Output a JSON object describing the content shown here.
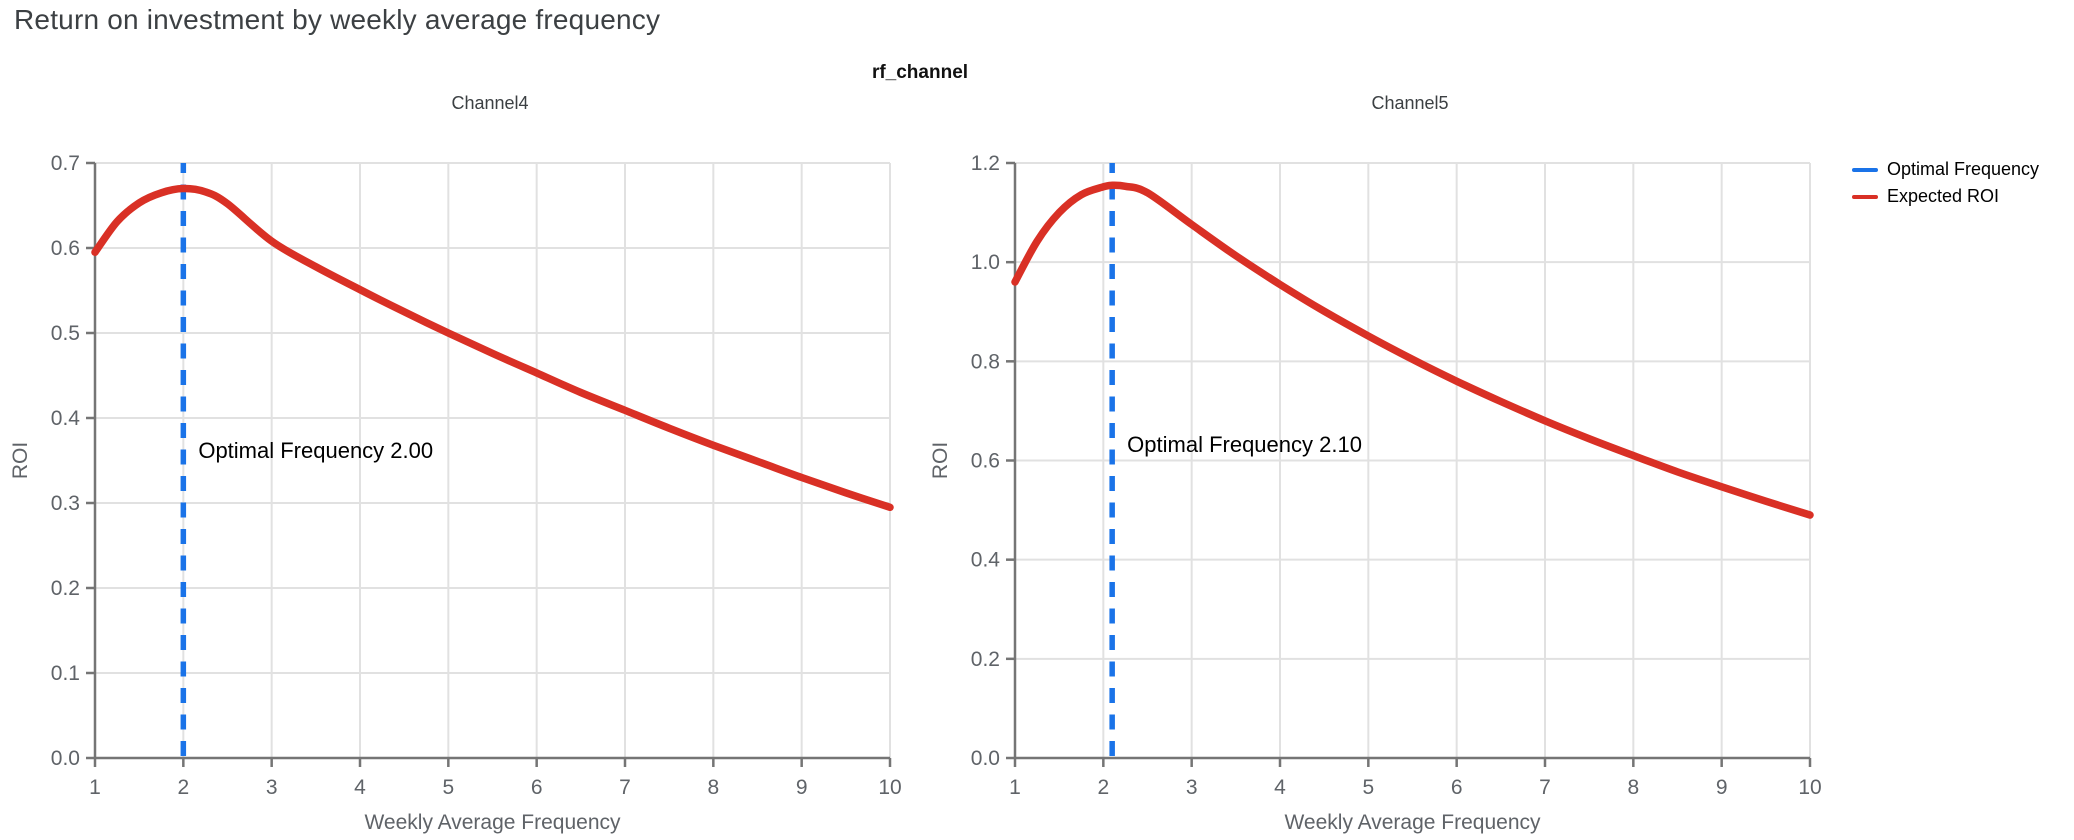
{
  "page": {
    "title": "Return on investment by weekly average frequency"
  },
  "figure": {
    "supertitle": "rf_channel"
  },
  "legend": {
    "items": [
      {
        "label": "Optimal Frequency",
        "color": "#1a73e8"
      },
      {
        "label": "Expected ROI",
        "color": "#d93025"
      }
    ]
  },
  "colors": {
    "curve_red": "#d93025",
    "vline_blue": "#1a73e8",
    "grid": "#e1e1e1",
    "axis": "#757575",
    "tick_text": "#5f6368",
    "title_text": "#3c4043",
    "annotation_text": "#000000"
  },
  "chart_data": [
    {
      "type": "line",
      "title": "Channel4",
      "xlabel": "Weekly Average Frequency",
      "ylabel": "ROI",
      "xlim": [
        1,
        10
      ],
      "ylim": [
        0,
        0.7
      ],
      "grid": true,
      "xticks": [
        1,
        2,
        3,
        4,
        5,
        6,
        7,
        8,
        9,
        10
      ],
      "xtick_labels": [
        "1",
        "2",
        "3",
        "4",
        "5",
        "6",
        "7",
        "8",
        "9",
        "10"
      ],
      "yticks": [
        0,
        0.1,
        0.2,
        0.3,
        0.4,
        0.5,
        0.6,
        0.7
      ],
      "ytick_labels": [
        "0.0",
        "0.1",
        "0.2",
        "0.3",
        "0.4",
        "0.5",
        "0.6",
        "0.7"
      ],
      "vline": {
        "name": "Optimal Frequency",
        "x": 2.0,
        "style": "dashed"
      },
      "annotation": {
        "text": "Optimal Frequency  2.00",
        "x": 2.0,
        "y": 0.353
      },
      "series": [
        {
          "name": "Expected ROI",
          "x": [
            1,
            1.25,
            1.5,
            1.75,
            2,
            2.25,
            2.5,
            3,
            3.5,
            4,
            4.5,
            5,
            5.5,
            6,
            6.5,
            7,
            7.5,
            8,
            8.5,
            9,
            9.5,
            10
          ],
          "y": [
            0.595,
            0.631,
            0.653,
            0.665,
            0.67,
            0.666,
            0.652,
            0.608,
            0.578,
            0.551,
            0.525,
            0.5,
            0.476,
            0.453,
            0.43,
            0.409,
            0.388,
            0.368,
            0.349,
            0.33,
            0.312,
            0.295
          ]
        }
      ]
    },
    {
      "type": "line",
      "title": "Channel5",
      "xlabel": "Weekly Average Frequency",
      "ylabel": "ROI",
      "xlim": [
        1,
        10
      ],
      "ylim": [
        0,
        1.2
      ],
      "grid": true,
      "xticks": [
        1,
        2,
        3,
        4,
        5,
        6,
        7,
        8,
        9,
        10
      ],
      "xtick_labels": [
        "1",
        "2",
        "3",
        "4",
        "5",
        "6",
        "7",
        "8",
        "9",
        "10"
      ],
      "yticks": [
        0,
        0.2,
        0.4,
        0.6,
        0.8,
        1.0,
        1.2
      ],
      "ytick_labels": [
        "0.0",
        "0.2",
        "0.4",
        "0.6",
        "0.8",
        "1.0",
        "1.2"
      ],
      "vline": {
        "name": "Optimal Frequency",
        "x": 2.1,
        "style": "dashed"
      },
      "annotation": {
        "text": "Optimal Frequency  2.10",
        "x": 2.1,
        "y": 0.617
      },
      "series": [
        {
          "name": "Expected ROI",
          "x": [
            1,
            1.25,
            1.5,
            1.75,
            2,
            2.1,
            2.25,
            2.5,
            3,
            3.5,
            4,
            4.5,
            5,
            5.5,
            6,
            6.5,
            7,
            7.5,
            8,
            8.5,
            9,
            9.5,
            10
          ],
          "y": [
            0.96,
            1.042,
            1.1,
            1.136,
            1.152,
            1.155,
            1.153,
            1.14,
            1.076,
            1.013,
            0.955,
            0.901,
            0.851,
            0.804,
            0.76,
            0.719,
            0.68,
            0.644,
            0.61,
            0.577,
            0.547,
            0.518,
            0.49
          ]
        }
      ]
    }
  ]
}
